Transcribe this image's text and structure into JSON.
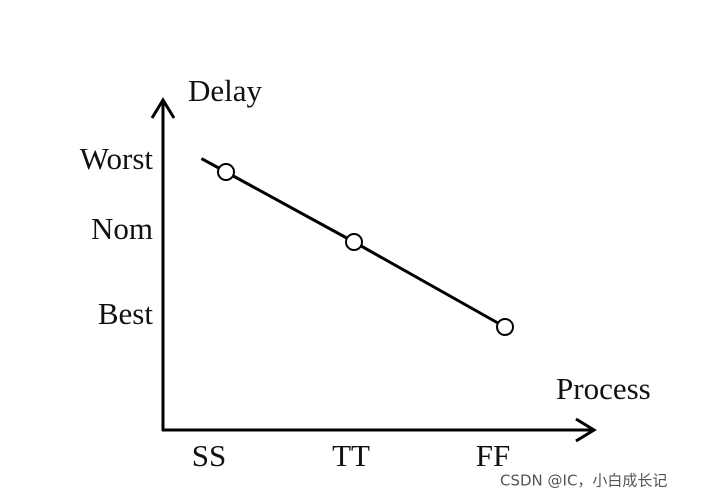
{
  "chart_data": {
    "type": "line",
    "y_label": "Delay",
    "x_label": "Process",
    "categories": [
      "SS",
      "TT",
      "FF"
    ],
    "y_categories": [
      "Worst",
      "Nom",
      "Best"
    ],
    "values": [
      "Worst",
      "Nom",
      "Best"
    ],
    "color": "#000000",
    "watermark": "CSDN @IC，小白成长记"
  }
}
